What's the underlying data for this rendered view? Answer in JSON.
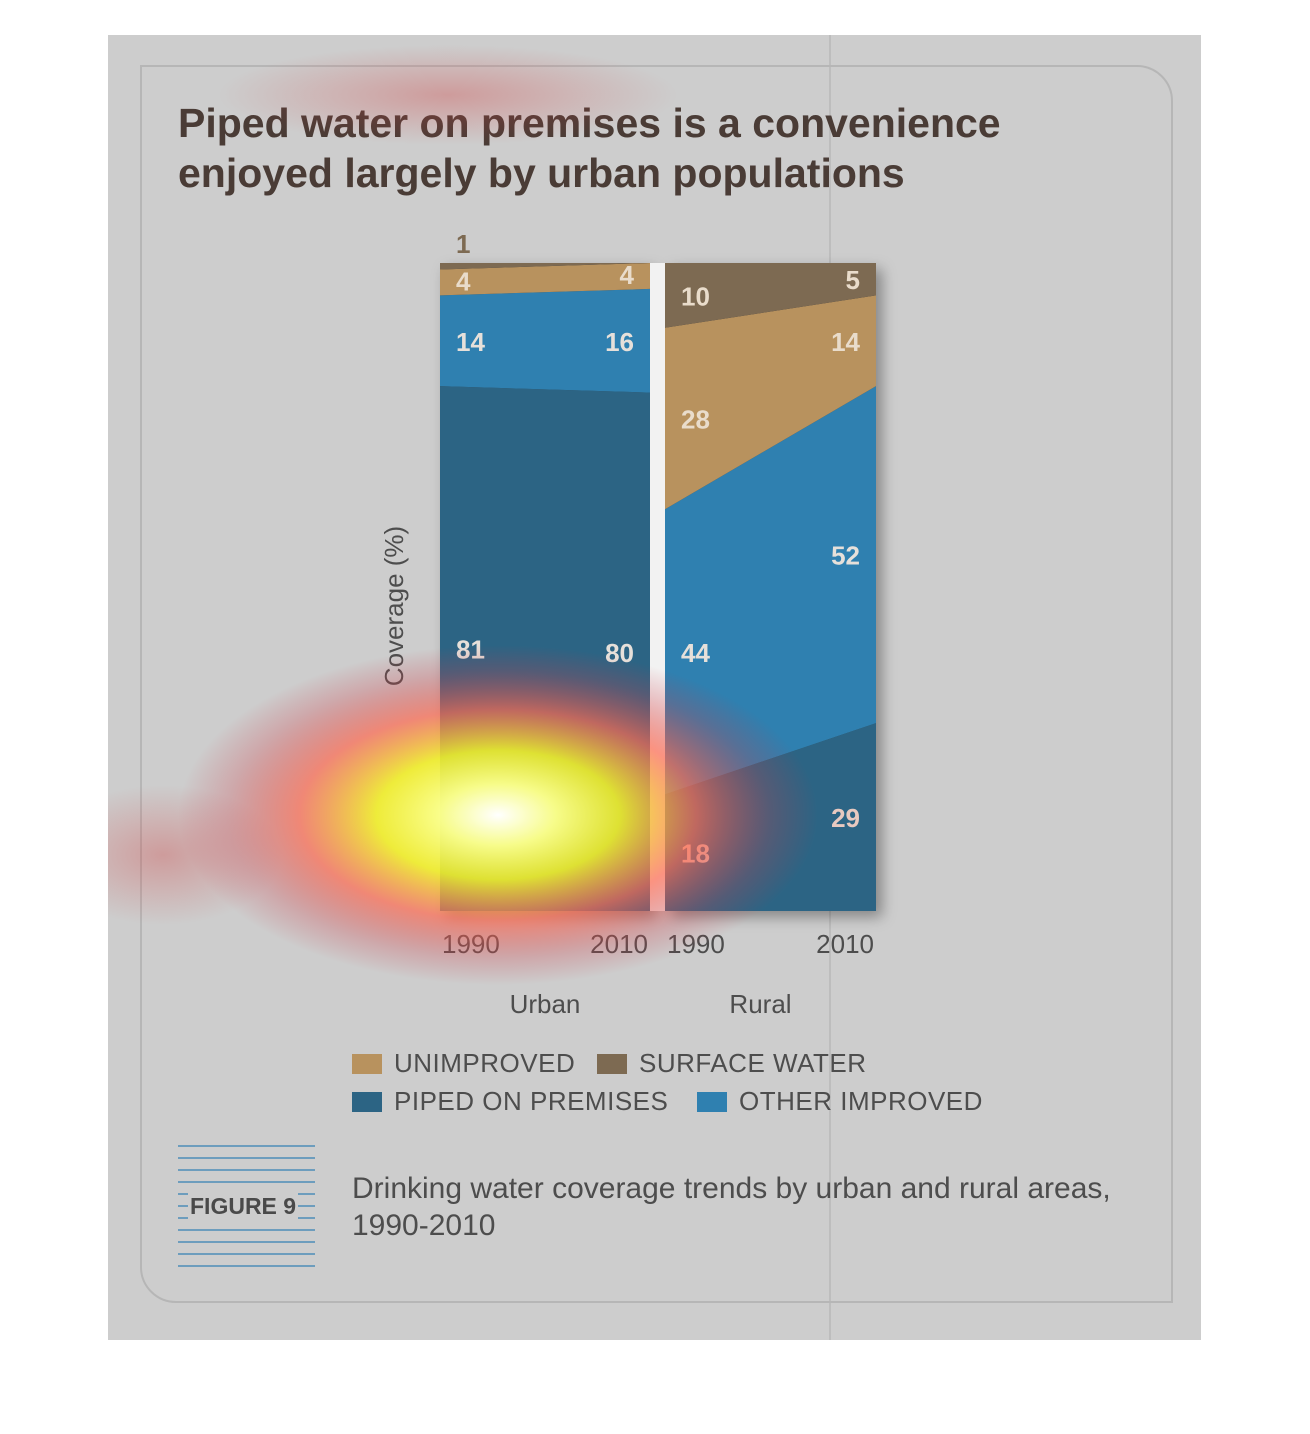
{
  "figure": {
    "title": "Piped water on premises is a convenience enjoyed largely by urban populations",
    "label": "FIGURE 9",
    "caption": "Drinking water coverage trends by urban and rural areas, 1990-2010"
  },
  "colors": {
    "unimproved": "#b8925e",
    "surface_water": "#7d6a52",
    "piped_on_premises": "#2c6484",
    "other_improved": "#2f80b0",
    "panel": "#cdcdcd"
  },
  "legend": [
    {
      "label": "UNIMPROVED",
      "color": "#b8925e"
    },
    {
      "label": "SURFACE WATER",
      "color": "#7d6a52"
    },
    {
      "label": "PIPED ON PREMISES",
      "color": "#2c6484"
    },
    {
      "label": "OTHER IMPROVED",
      "color": "#2f80b0"
    }
  ],
  "chart_data": {
    "type": "area",
    "stacked_to_100": true,
    "ylabel": "Coverage (%)",
    "ylim": [
      0,
      100
    ],
    "panels": [
      {
        "name": "Urban",
        "x": [
          "1990",
          "2010"
        ],
        "series": [
          {
            "name": "PIPED ON PREMISES",
            "values": [
              81,
              80
            ]
          },
          {
            "name": "OTHER IMPROVED",
            "values": [
              14,
              16
            ]
          },
          {
            "name": "UNIMPROVED",
            "values": [
              4,
              4
            ]
          },
          {
            "name": "SURFACE WATER",
            "values": [
              1,
              0
            ]
          }
        ],
        "labels": [
          [
            "81",
            "80"
          ],
          [
            "14",
            "16"
          ],
          [
            "4",
            "4"
          ],
          [
            "1",
            ""
          ]
        ]
      },
      {
        "name": "Rural",
        "x": [
          "1990",
          "2010"
        ],
        "series": [
          {
            "name": "PIPED ON PREMISES",
            "values": [
              18,
              29
            ]
          },
          {
            "name": "OTHER IMPROVED",
            "values": [
              44,
              52
            ]
          },
          {
            "name": "UNIMPROVED",
            "values": [
              28,
              14
            ]
          },
          {
            "name": "SURFACE WATER",
            "values": [
              10,
              5
            ]
          }
        ],
        "labels": [
          [
            "18",
            "29"
          ],
          [
            "44",
            "52"
          ],
          [
            "28",
            "14"
          ],
          [
            "10",
            "5"
          ]
        ]
      }
    ]
  }
}
